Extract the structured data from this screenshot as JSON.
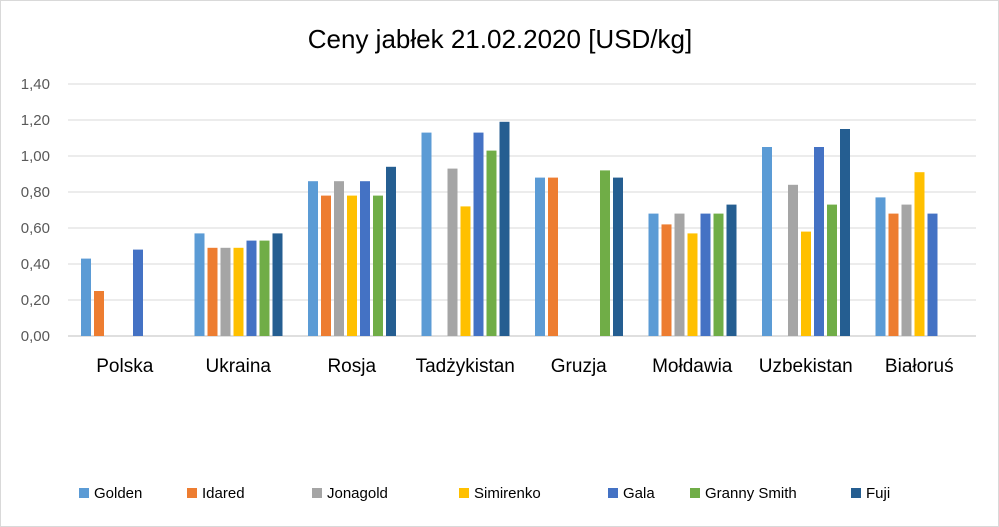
{
  "chart_data": {
    "type": "bar",
    "title": "Ceny jabłek 21.02.2020 [USD/kg]",
    "xlabel": "",
    "ylabel": "",
    "ylim": [
      0,
      1.4
    ],
    "yticks": [
      "0,00",
      "0,20",
      "0,40",
      "0,60",
      "0,80",
      "1,00",
      "1,20",
      "1,40"
    ],
    "grid": true,
    "legend_position": "bottom",
    "categories": [
      "Polska",
      "Ukraina",
      "Rosja",
      "Tadżykistan",
      "Gruzja",
      "Mołdawia",
      "Uzbekistan",
      "Białoruś"
    ],
    "series": [
      {
        "name": "Golden",
        "color": "#5b9bd5",
        "values": [
          0.43,
          0.57,
          0.86,
          1.13,
          0.88,
          0.68,
          1.05,
          0.77
        ]
      },
      {
        "name": "Idared",
        "color": "#ed7d31",
        "values": [
          0.25,
          0.49,
          0.78,
          null,
          0.88,
          0.62,
          null,
          0.68
        ]
      },
      {
        "name": "Jonagold",
        "color": "#a5a5a5",
        "values": [
          null,
          0.49,
          0.86,
          0.93,
          null,
          0.68,
          0.84,
          0.73
        ]
      },
      {
        "name": "Simirenko",
        "color": "#ffc000",
        "values": [
          null,
          0.49,
          0.78,
          0.72,
          null,
          0.57,
          0.58,
          0.91
        ]
      },
      {
        "name": "Gala",
        "color": "#4472c4",
        "values": [
          0.48,
          0.53,
          0.86,
          1.13,
          null,
          0.68,
          1.05,
          0.68
        ]
      },
      {
        "name": "Granny Smith",
        "color": "#70ad47",
        "values": [
          null,
          0.53,
          0.78,
          1.03,
          0.92,
          0.68,
          0.73,
          null
        ]
      },
      {
        "name": "Fuji",
        "color": "#255e91",
        "values": [
          null,
          0.57,
          0.94,
          1.19,
          0.88,
          0.73,
          1.15,
          null
        ]
      }
    ]
  }
}
